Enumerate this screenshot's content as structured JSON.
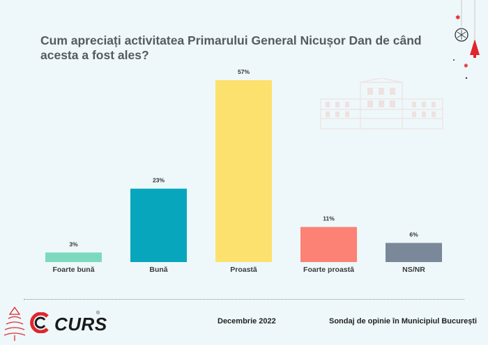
{
  "title": "Cum apreciați activitatea Primarului General Nicușor Dan de când acesta a fost ales?",
  "chart_data": {
    "type": "bar",
    "categories": [
      "Foarte bună",
      "Bună",
      "Proastă",
      "Foarte proastă",
      "NS/NR"
    ],
    "values": [
      3,
      23,
      57,
      11,
      6
    ],
    "value_labels": [
      "3%",
      "23%",
      "57%",
      "11%",
      "6%"
    ],
    "colors": [
      "#7dd9bd",
      "#07a6bc",
      "#fde16e",
      "#fb8274",
      "#7a889a"
    ],
    "ylim": [
      0,
      57
    ]
  },
  "footer": {
    "brand": "CURS",
    "registered": "®",
    "date": "Decembrie 2022",
    "survey": "Sondaj de opinie în Municipiul București"
  }
}
